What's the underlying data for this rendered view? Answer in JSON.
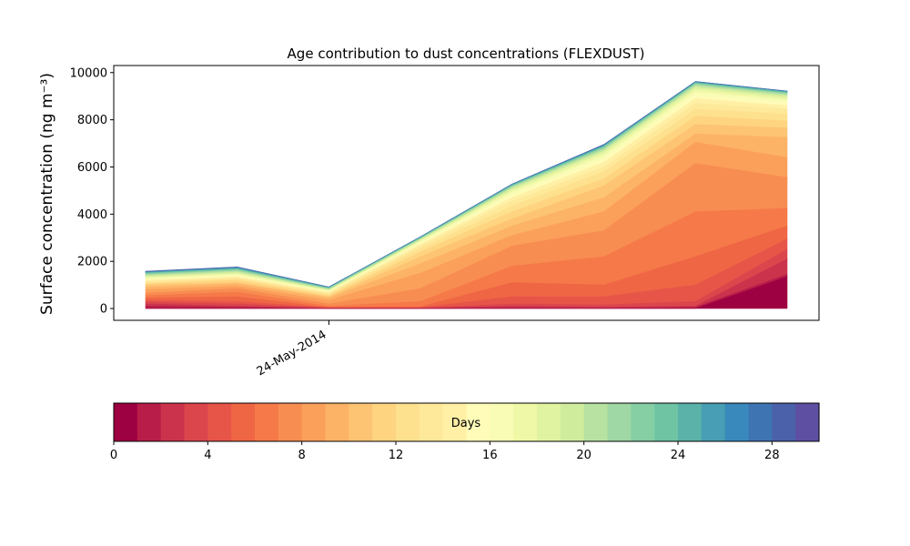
{
  "chart_data": {
    "type": "area",
    "title": "Age contribution to dust concentrations (FLEXDUST)",
    "ylabel": "Surface concentration (ng m⁻³)",
    "xlabel": "",
    "x": [
      0,
      1,
      2,
      3,
      4,
      5,
      6,
      7
    ],
    "x_ticks": [
      {
        "x": 2,
        "label": "24-May-2014"
      }
    ],
    "ylim": [
      -500,
      10300
    ],
    "y_ticks": [
      0,
      2000,
      4000,
      6000,
      8000,
      10000
    ],
    "grid": false,
    "layer_totals": [
      [
        0,
        0,
        0,
        0,
        0,
        0,
        0,
        1350
      ],
      [
        100,
        50,
        0,
        0,
        30,
        10,
        50,
        1450
      ],
      [
        200,
        100,
        10,
        10,
        100,
        50,
        100,
        2100
      ],
      [
        280,
        200,
        20,
        20,
        200,
        150,
        300,
        2500
      ],
      [
        350,
        300,
        30,
        40,
        500,
        500,
        1000,
        2950
      ],
      [
        450,
        500,
        50,
        80,
        1100,
        1000,
        2200,
        3500
      ],
      [
        550,
        700,
        100,
        300,
        1800,
        2200,
        4100,
        4250
      ],
      [
        650,
        850,
        200,
        850,
        2650,
        3300,
        6150,
        5550
      ],
      [
        800,
        950,
        350,
        1500,
        3100,
        4100,
        7050,
        6400
      ],
      [
        900,
        1050,
        450,
        1900,
        3500,
        4700,
        7400,
        7250
      ],
      [
        1000,
        1100,
        500,
        2200,
        3800,
        5200,
        7800,
        7650
      ],
      [
        1050,
        1200,
        550,
        2400,
        4100,
        5500,
        8150,
        7950
      ],
      [
        1100,
        1250,
        600,
        2550,
        4350,
        5800,
        8450,
        8250
      ],
      [
        1150,
        1300,
        650,
        2650,
        4550,
        6000,
        8700,
        8450
      ],
      [
        1200,
        1350,
        680,
        2720,
        4700,
        6200,
        8900,
        8600
      ],
      [
        1230,
        1390,
        700,
        2780,
        4820,
        6350,
        9050,
        8720
      ],
      [
        1270,
        1430,
        730,
        2830,
        4920,
        6470,
        9180,
        8820
      ],
      [
        1310,
        1470,
        760,
        2870,
        5000,
        6570,
        9280,
        8900
      ],
      [
        1350,
        1510,
        780,
        2900,
        5060,
        6650,
        9360,
        8970
      ],
      [
        1390,
        1550,
        800,
        2930,
        5110,
        6710,
        9420,
        9030
      ],
      [
        1420,
        1590,
        820,
        2950,
        5150,
        6760,
        9470,
        9070
      ],
      [
        1450,
        1620,
        840,
        2970,
        5180,
        6800,
        9510,
        9110
      ],
      [
        1480,
        1650,
        860,
        2990,
        5200,
        6840,
        9540,
        9140
      ],
      [
        1500,
        1680,
        870,
        3000,
        5220,
        6870,
        9560,
        9160
      ],
      [
        1520,
        1700,
        880,
        3010,
        5240,
        6890,
        9580,
        9180
      ],
      [
        1535,
        1720,
        890,
        3020,
        5250,
        6910,
        9595,
        9190
      ],
      [
        1550,
        1735,
        900,
        3030,
        5260,
        6925,
        9605,
        9200
      ],
      [
        1560,
        1745,
        905,
        3035,
        5270,
        6935,
        9615,
        9210
      ],
      [
        1570,
        1755,
        910,
        3040,
        5275,
        6945,
        9620,
        9215
      ],
      [
        1580,
        1765,
        915,
        3045,
        5280,
        6955,
        9625,
        9220
      ]
    ],
    "colors": [
      "#9e0142",
      "#b71d48",
      "#cb334c",
      "#db464d",
      "#e75548",
      "#ef6645",
      "#f67a49",
      "#f88d52",
      "#fba05b",
      "#fdb366",
      "#fdc474",
      "#fed481",
      "#fee18e",
      "#fee99b",
      "#fff0a6",
      "#fffbb8",
      "#f8fcb4",
      "#eff8a6",
      "#e0f3a1",
      "#cfec9d",
      "#b8e2a1",
      "#9fd8a4",
      "#86cea4",
      "#6fc4a4",
      "#5ab2a8",
      "#489eb4",
      "#3a89bc",
      "#3f74b3",
      "#4b61aa",
      "#5e4fa2"
    ],
    "colorbar": {
      "label": "Days",
      "range": [
        0,
        30
      ],
      "ticks": [
        0,
        4,
        8,
        12,
        16,
        20,
        24,
        28
      ]
    }
  }
}
